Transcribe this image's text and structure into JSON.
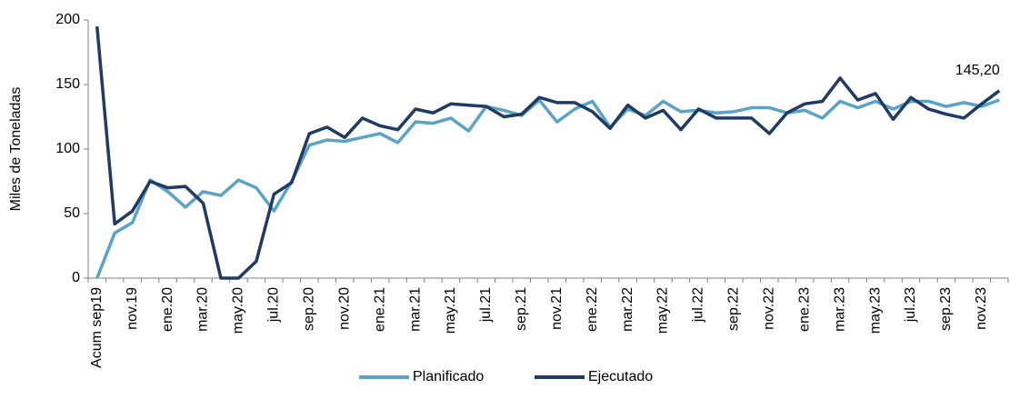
{
  "chart_data": {
    "type": "line",
    "y_label": "Miles de Toneladas",
    "categories": [
      "Acum sep19",
      null,
      "nov.19",
      null,
      "ene.20",
      null,
      "mar.20",
      null,
      "may.20",
      null,
      "jul.20",
      null,
      "sep.20",
      null,
      "nov.20",
      null,
      "ene.21",
      null,
      "mar.21",
      null,
      "may.21",
      null,
      "jul.21",
      null,
      "sep.21",
      null,
      "nov.21",
      null,
      "ene.22",
      null,
      "mar.22",
      null,
      "may.22",
      null,
      "jul.22",
      null,
      "sep.22",
      null,
      "nov.22",
      null,
      "ene.23",
      null,
      "mar.23",
      null,
      "may.23",
      null,
      "jul.23",
      null,
      "sep.23",
      null,
      "nov.23",
      null
    ],
    "series": [
      {
        "name": "Planificado",
        "color": "#5ba3c5",
        "values": [
          0,
          35,
          43,
          76,
          67,
          55,
          67,
          64,
          76,
          70,
          52,
          75,
          103,
          107,
          106,
          109,
          112,
          105,
          121,
          120,
          124,
          114,
          133,
          130,
          126,
          138,
          121,
          131,
          137,
          117,
          131,
          126,
          137,
          129,
          130,
          128,
          129,
          132,
          132,
          128,
          130,
          124,
          137,
          132,
          137,
          131,
          137,
          137,
          133,
          136,
          133,
          138
        ]
      },
      {
        "name": "Ejecutado",
        "color": "#1f3b63",
        "values": [
          195,
          42,
          52,
          75,
          70,
          71,
          58,
          0,
          0,
          13,
          65,
          74,
          112,
          117,
          109,
          124,
          118,
          115,
          131,
          128,
          135,
          134,
          133,
          125,
          127,
          140,
          136,
          136,
          129,
          116,
          134,
          124,
          130,
          115,
          131,
          124,
          124,
          124,
          112,
          128,
          135,
          137,
          155,
          138,
          143,
          123,
          140,
          131,
          127,
          124,
          135,
          145.2
        ],
        "value_labels": [
          null,
          null,
          null,
          null,
          null,
          null,
          null,
          null,
          null,
          null,
          null,
          null,
          null,
          null,
          null,
          null,
          null,
          null,
          null,
          null,
          null,
          null,
          null,
          null,
          null,
          null,
          null,
          null,
          null,
          null,
          null,
          null,
          null,
          null,
          null,
          null,
          null,
          null,
          null,
          null,
          null,
          null,
          null,
          null,
          null,
          null,
          null,
          null,
          null,
          null,
          null,
          "145,20"
        ]
      }
    ],
    "ylim": [
      0,
      200
    ],
    "yticks": [
      0,
      50,
      100,
      150,
      200
    ],
    "grid": false,
    "legend": "bottom"
  }
}
